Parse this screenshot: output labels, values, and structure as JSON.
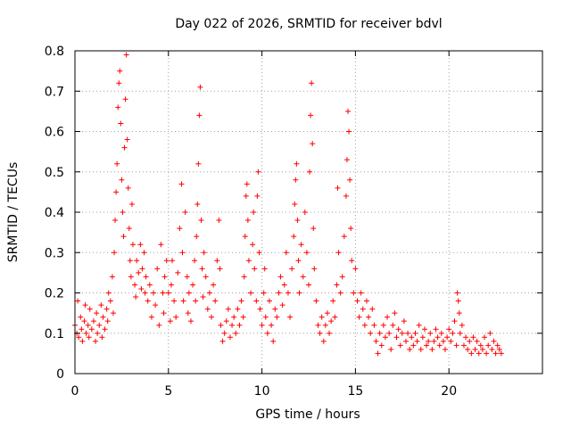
{
  "chart_data": {
    "type": "scatter",
    "title": "Day 022 of 2026, SRMTID for receiver bdvl",
    "xlabel": "GPS time / hours",
    "ylabel": "SRMTID / TECUs",
    "xlim": [
      0,
      25
    ],
    "ylim": [
      0,
      0.8
    ],
    "xticks": [
      0,
      5,
      10,
      15,
      20
    ],
    "xtick_labels": [
      "0",
      "5",
      "10",
      "15",
      "20"
    ],
    "yticks": [
      0,
      0.1,
      0.2,
      0.3,
      0.4,
      0.5,
      0.6,
      0.7,
      0.8
    ],
    "ytick_labels": [
      "0",
      "0.1",
      "0.2",
      "0.3",
      "0.4",
      "0.5",
      "0.6",
      "0.7",
      "0.8"
    ],
    "grid": true,
    "marker": "plus",
    "color": "#ff0000",
    "series": [
      {
        "name": "SRMTID",
        "points": [
          [
            0.0,
            0.12
          ],
          [
            0.1,
            0.1
          ],
          [
            0.15,
            0.18
          ],
          [
            0.2,
            0.09
          ],
          [
            0.3,
            0.14
          ],
          [
            0.35,
            0.11
          ],
          [
            0.4,
            0.08
          ],
          [
            0.5,
            0.13
          ],
          [
            0.55,
            0.17
          ],
          [
            0.6,
            0.1
          ],
          [
            0.7,
            0.12
          ],
          [
            0.75,
            0.09
          ],
          [
            0.8,
            0.16
          ],
          [
            0.9,
            0.11
          ],
          [
            1.0,
            0.13
          ],
          [
            1.1,
            0.08
          ],
          [
            1.15,
            0.15
          ],
          [
            1.2,
            0.1
          ],
          [
            1.3,
            0.12
          ],
          [
            1.4,
            0.17
          ],
          [
            1.45,
            0.09
          ],
          [
            1.5,
            0.14
          ],
          [
            1.6,
            0.11
          ],
          [
            1.7,
            0.16
          ],
          [
            1.75,
            0.13
          ],
          [
            1.8,
            0.2
          ],
          [
            1.9,
            0.18
          ],
          [
            2.0,
            0.24
          ],
          [
            2.05,
            0.15
          ],
          [
            2.1,
            0.3
          ],
          [
            2.15,
            0.38
          ],
          [
            2.2,
            0.45
          ],
          [
            2.25,
            0.52
          ],
          [
            2.3,
            0.66
          ],
          [
            2.35,
            0.72
          ],
          [
            2.4,
            0.75
          ],
          [
            2.45,
            0.62
          ],
          [
            2.5,
            0.48
          ],
          [
            2.55,
            0.4
          ],
          [
            2.6,
            0.34
          ],
          [
            2.65,
            0.56
          ],
          [
            2.7,
            0.68
          ],
          [
            2.75,
            0.79
          ],
          [
            2.8,
            0.58
          ],
          [
            2.85,
            0.46
          ],
          [
            2.9,
            0.36
          ],
          [
            2.95,
            0.28
          ],
          [
            3.0,
            0.24
          ],
          [
            3.05,
            0.42
          ],
          [
            3.1,
            0.32
          ],
          [
            3.2,
            0.22
          ],
          [
            3.25,
            0.19
          ],
          [
            3.3,
            0.28
          ],
          [
            3.4,
            0.25
          ],
          [
            3.5,
            0.32
          ],
          [
            3.55,
            0.21
          ],
          [
            3.6,
            0.26
          ],
          [
            3.7,
            0.3
          ],
          [
            3.75,
            0.2
          ],
          [
            3.8,
            0.24
          ],
          [
            3.9,
            0.18
          ],
          [
            4.0,
            0.22
          ],
          [
            4.1,
            0.14
          ],
          [
            4.2,
            0.2
          ],
          [
            4.3,
            0.17
          ],
          [
            4.4,
            0.26
          ],
          [
            4.5,
            0.12
          ],
          [
            4.6,
            0.32
          ],
          [
            4.7,
            0.2
          ],
          [
            4.75,
            0.15
          ],
          [
            4.8,
            0.24
          ],
          [
            4.9,
            0.28
          ],
          [
            5.0,
            0.2
          ],
          [
            5.1,
            0.13
          ],
          [
            5.15,
            0.22
          ],
          [
            5.2,
            0.28
          ],
          [
            5.3,
            0.18
          ],
          [
            5.4,
            0.14
          ],
          [
            5.5,
            0.25
          ],
          [
            5.6,
            0.36
          ],
          [
            5.7,
            0.47
          ],
          [
            5.75,
            0.3
          ],
          [
            5.8,
            0.18
          ],
          [
            5.9,
            0.4
          ],
          [
            6.0,
            0.24
          ],
          [
            6.05,
            0.15
          ],
          [
            6.1,
            0.2
          ],
          [
            6.2,
            0.13
          ],
          [
            6.3,
            0.22
          ],
          [
            6.4,
            0.28
          ],
          [
            6.45,
            0.18
          ],
          [
            6.5,
            0.34
          ],
          [
            6.55,
            0.42
          ],
          [
            6.6,
            0.52
          ],
          [
            6.65,
            0.64
          ],
          [
            6.7,
            0.71
          ],
          [
            6.75,
            0.38
          ],
          [
            6.8,
            0.26
          ],
          [
            6.85,
            0.19
          ],
          [
            6.9,
            0.3
          ],
          [
            7.0,
            0.24
          ],
          [
            7.1,
            0.16
          ],
          [
            7.2,
            0.2
          ],
          [
            7.3,
            0.14
          ],
          [
            7.4,
            0.22
          ],
          [
            7.5,
            0.18
          ],
          [
            7.6,
            0.28
          ],
          [
            7.7,
            0.38
          ],
          [
            7.75,
            0.26
          ],
          [
            7.8,
            0.12
          ],
          [
            7.9,
            0.08
          ],
          [
            8.0,
            0.1
          ],
          [
            8.1,
            0.13
          ],
          [
            8.2,
            0.16
          ],
          [
            8.3,
            0.09
          ],
          [
            8.4,
            0.12
          ],
          [
            8.5,
            0.14
          ],
          [
            8.6,
            0.1
          ],
          [
            8.7,
            0.16
          ],
          [
            8.8,
            0.12
          ],
          [
            8.9,
            0.18
          ],
          [
            9.0,
            0.14
          ],
          [
            9.05,
            0.24
          ],
          [
            9.1,
            0.34
          ],
          [
            9.15,
            0.44
          ],
          [
            9.2,
            0.47
          ],
          [
            9.25,
            0.38
          ],
          [
            9.3,
            0.28
          ],
          [
            9.4,
            0.2
          ],
          [
            9.5,
            0.32
          ],
          [
            9.55,
            0.4
          ],
          [
            9.6,
            0.26
          ],
          [
            9.7,
            0.18
          ],
          [
            9.75,
            0.44
          ],
          [
            9.8,
            0.5
          ],
          [
            9.85,
            0.3
          ],
          [
            9.9,
            0.16
          ],
          [
            10.0,
            0.12
          ],
          [
            10.1,
            0.2
          ],
          [
            10.15,
            0.26
          ],
          [
            10.2,
            0.14
          ],
          [
            10.3,
            0.1
          ],
          [
            10.4,
            0.18
          ],
          [
            10.5,
            0.12
          ],
          [
            10.6,
            0.08
          ],
          [
            10.7,
            0.16
          ],
          [
            10.8,
            0.14
          ],
          [
            10.9,
            0.2
          ],
          [
            11.0,
            0.24
          ],
          [
            11.1,
            0.17
          ],
          [
            11.2,
            0.22
          ],
          [
            11.3,
            0.3
          ],
          [
            11.4,
            0.2
          ],
          [
            11.5,
            0.14
          ],
          [
            11.6,
            0.26
          ],
          [
            11.7,
            0.34
          ],
          [
            11.75,
            0.42
          ],
          [
            11.8,
            0.48
          ],
          [
            11.85,
            0.52
          ],
          [
            11.9,
            0.38
          ],
          [
            11.95,
            0.28
          ],
          [
            12.0,
            0.2
          ],
          [
            12.1,
            0.32
          ],
          [
            12.2,
            0.24
          ],
          [
            12.3,
            0.4
          ],
          [
            12.4,
            0.3
          ],
          [
            12.5,
            0.22
          ],
          [
            12.55,
            0.5
          ],
          [
            12.6,
            0.64
          ],
          [
            12.65,
            0.72
          ],
          [
            12.7,
            0.57
          ],
          [
            12.75,
            0.36
          ],
          [
            12.8,
            0.26
          ],
          [
            12.9,
            0.18
          ],
          [
            13.0,
            0.12
          ],
          [
            13.1,
            0.1
          ],
          [
            13.2,
            0.14
          ],
          [
            13.3,
            0.08
          ],
          [
            13.4,
            0.12
          ],
          [
            13.5,
            0.15
          ],
          [
            13.6,
            0.1
          ],
          [
            13.7,
            0.13
          ],
          [
            13.8,
            0.18
          ],
          [
            13.9,
            0.14
          ],
          [
            14.0,
            0.22
          ],
          [
            14.05,
            0.46
          ],
          [
            14.1,
            0.3
          ],
          [
            14.2,
            0.2
          ],
          [
            14.3,
            0.24
          ],
          [
            14.4,
            0.34
          ],
          [
            14.5,
            0.44
          ],
          [
            14.55,
            0.53
          ],
          [
            14.6,
            0.65
          ],
          [
            14.65,
            0.6
          ],
          [
            14.7,
            0.48
          ],
          [
            14.75,
            0.36
          ],
          [
            14.8,
            0.28
          ],
          [
            14.9,
            0.2
          ],
          [
            15.0,
            0.26
          ],
          [
            15.1,
            0.18
          ],
          [
            15.2,
            0.14
          ],
          [
            15.3,
            0.2
          ],
          [
            15.4,
            0.16
          ],
          [
            15.5,
            0.12
          ],
          [
            15.6,
            0.18
          ],
          [
            15.7,
            0.14
          ],
          [
            15.8,
            0.1
          ],
          [
            15.9,
            0.16
          ],
          [
            16.0,
            0.12
          ],
          [
            16.1,
            0.08
          ],
          [
            16.2,
            0.05
          ],
          [
            16.3,
            0.1
          ],
          [
            16.4,
            0.07
          ],
          [
            16.5,
            0.12
          ],
          [
            16.6,
            0.09
          ],
          [
            16.7,
            0.14
          ],
          [
            16.8,
            0.1
          ],
          [
            16.9,
            0.06
          ],
          [
            17.0,
            0.12
          ],
          [
            17.1,
            0.15
          ],
          [
            17.2,
            0.09
          ],
          [
            17.3,
            0.11
          ],
          [
            17.4,
            0.07
          ],
          [
            17.5,
            0.1
          ],
          [
            17.6,
            0.13
          ],
          [
            17.7,
            0.08
          ],
          [
            17.8,
            0.1
          ],
          [
            17.9,
            0.06
          ],
          [
            18.0,
            0.09
          ],
          [
            18.1,
            0.07
          ],
          [
            18.2,
            0.1
          ],
          [
            18.3,
            0.08
          ],
          [
            18.4,
            0.12
          ],
          [
            18.5,
            0.06
          ],
          [
            18.6,
            0.09
          ],
          [
            18.7,
            0.11
          ],
          [
            18.8,
            0.07
          ],
          [
            18.9,
            0.08
          ],
          [
            19.0,
            0.1
          ],
          [
            19.1,
            0.06
          ],
          [
            19.2,
            0.08
          ],
          [
            19.3,
            0.11
          ],
          [
            19.4,
            0.09
          ],
          [
            19.5,
            0.07
          ],
          [
            19.6,
            0.1
          ],
          [
            19.7,
            0.08
          ],
          [
            19.8,
            0.06
          ],
          [
            19.9,
            0.09
          ],
          [
            20.0,
            0.11
          ],
          [
            20.1,
            0.08
          ],
          [
            20.2,
            0.1
          ],
          [
            20.3,
            0.13
          ],
          [
            20.4,
            0.07
          ],
          [
            20.45,
            0.2
          ],
          [
            20.5,
            0.18
          ],
          [
            20.55,
            0.15
          ],
          [
            20.6,
            0.1
          ],
          [
            20.7,
            0.12
          ],
          [
            20.8,
            0.07
          ],
          [
            20.9,
            0.09
          ],
          [
            21.0,
            0.06
          ],
          [
            21.1,
            0.08
          ],
          [
            21.2,
            0.05
          ],
          [
            21.3,
            0.09
          ],
          [
            21.4,
            0.06
          ],
          [
            21.5,
            0.08
          ],
          [
            21.6,
            0.05
          ],
          [
            21.7,
            0.07
          ],
          [
            21.8,
            0.06
          ],
          [
            21.9,
            0.09
          ],
          [
            22.0,
            0.05
          ],
          [
            22.1,
            0.07
          ],
          [
            22.2,
            0.1
          ],
          [
            22.3,
            0.06
          ],
          [
            22.4,
            0.08
          ],
          [
            22.5,
            0.05
          ],
          [
            22.6,
            0.07
          ],
          [
            22.7,
            0.06
          ],
          [
            22.8,
            0.05
          ]
        ]
      }
    ]
  }
}
